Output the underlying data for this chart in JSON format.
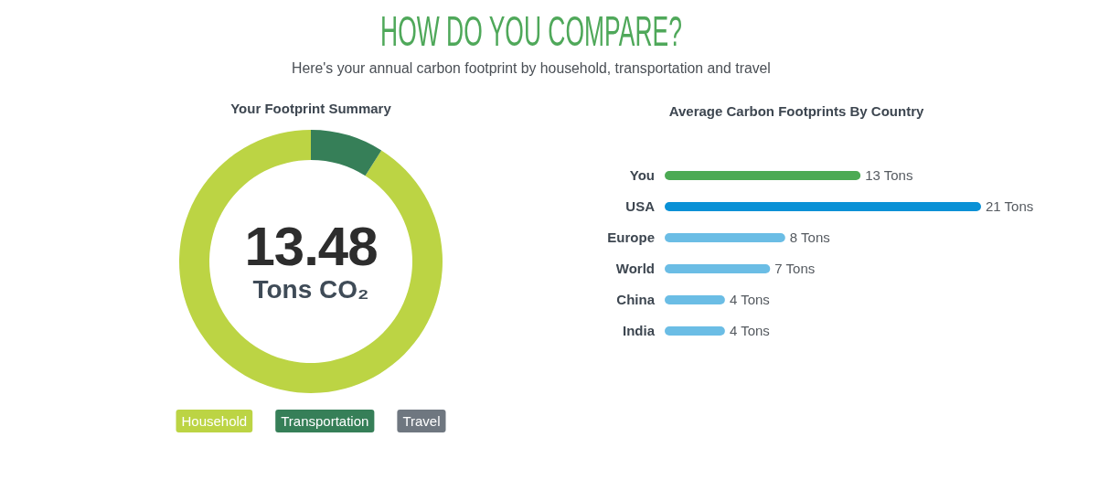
{
  "chart_data": [
    {
      "type": "other",
      "title": "HOW DO YOU COMPARE?",
      "subtitle": "Here's your annual carbon footprint by household, transportation and travel"
    },
    {
      "type": "donut",
      "title": "Your Footprint Summary",
      "categories": [
        "Household",
        "Transportation",
        "Travel"
      ],
      "values": [
        91,
        9,
        0
      ],
      "colors": [
        "#bcd444",
        "#367f58",
        "#6f7780"
      ],
      "annotations": [
        "13.48",
        "Tons CO₂"
      ],
      "legend": "bottom"
    },
    {
      "type": "bar",
      "orientation": "horizontal",
      "title": "Average Carbon Footprints By Country",
      "categories": [
        "You",
        "USA",
        "Europe",
        "World",
        "China",
        "India"
      ],
      "values": [
        13,
        21,
        8,
        7,
        4,
        4
      ],
      "colors": [
        "#4caa54",
        "#0a91d6",
        "#6bbde5",
        "#6bbde5",
        "#6bbde5",
        "#6bbde5"
      ],
      "value_labels": [
        "13 Tons",
        "21 Tons",
        "8 Tons",
        "7 Tons",
        "4 Tons",
        "4 Tons"
      ]
    }
  ]
}
